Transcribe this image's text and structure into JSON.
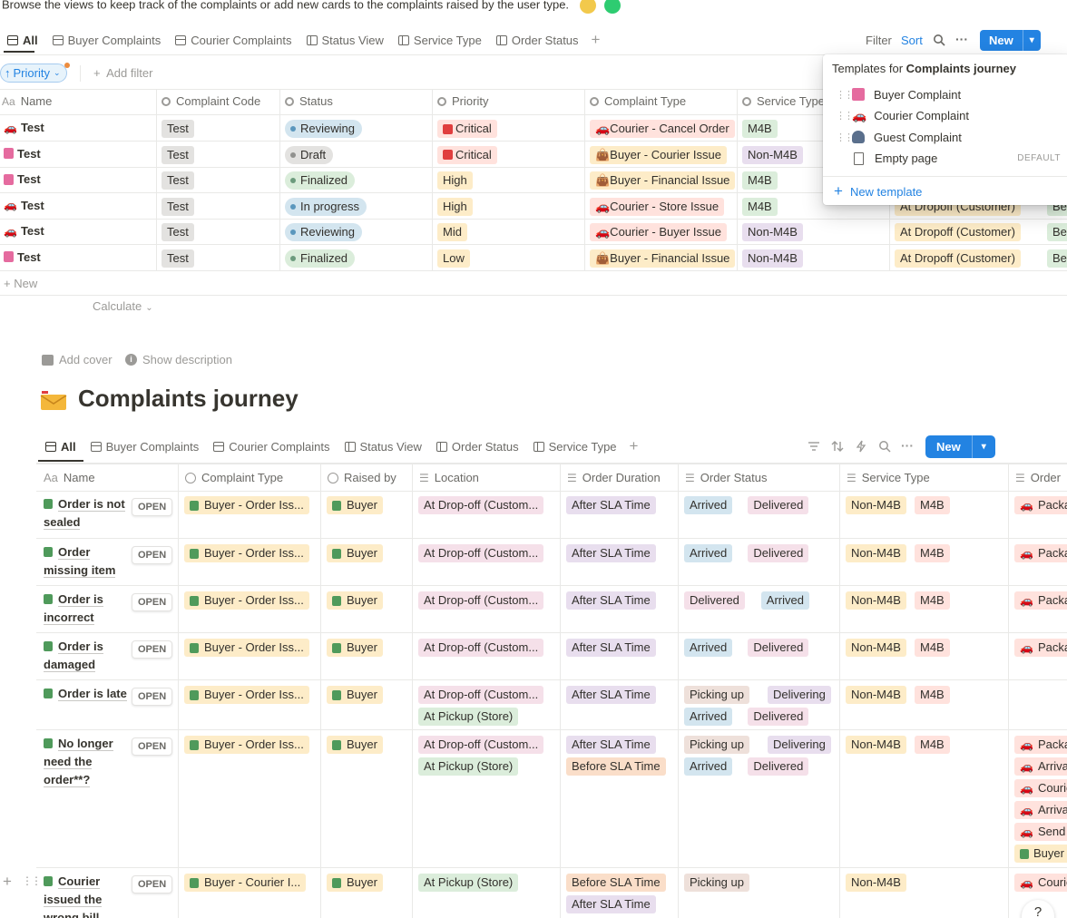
{
  "intro": {
    "text": "Browse the views to keep track of the complaints or add new cards to the complaints raised by the user type."
  },
  "top_tabs": [
    {
      "label": "All",
      "icon": "table-icon"
    },
    {
      "label": "Buyer Complaints",
      "icon": "table-icon"
    },
    {
      "label": "Courier Complaints",
      "icon": "table-icon"
    },
    {
      "label": "Status View",
      "icon": "board-icon"
    },
    {
      "label": "Service Type",
      "icon": "board-icon"
    },
    {
      "label": "Order Status",
      "icon": "board-icon"
    }
  ],
  "top_toolbar": {
    "filter": "Filter",
    "sort": "Sort",
    "new": "New"
  },
  "filter_bar": {
    "priority": "Priority",
    "add_filter": "Add filter"
  },
  "top_table": {
    "headers": [
      "Name",
      "Complaint Code",
      "Status",
      "Priority",
      "Complaint Type",
      "Service Type"
    ],
    "rows": [
      {
        "icon": "car",
        "name": "Test",
        "code": "Test",
        "status": "Reviewing",
        "status_color": "blue",
        "priority": "Critical",
        "priority_color": "red",
        "ptype_icon": "red",
        "ctype": "🚗Courier - Cancel Order",
        "ctype_color": "red",
        "service": "M4B",
        "service_color": "green",
        "col7": "",
        "col8": ""
      },
      {
        "icon": "bag",
        "name": "Test",
        "code": "Test",
        "status": "Draft",
        "status_color": "gray",
        "priority": "Critical",
        "priority_color": "red",
        "ptype_icon": "red",
        "ctype": "👜Buyer - Courier Issue",
        "ctype_color": "yellow",
        "service": "Non-M4B",
        "service_color": "purple",
        "col7": "",
        "col8": ""
      },
      {
        "icon": "bag",
        "name": "Test",
        "code": "Test",
        "status": "Finalized",
        "status_color": "green",
        "priority": "High",
        "priority_color": "yellow",
        "ptype_icon": "",
        "ctype": "👜Buyer - Financial Issue",
        "ctype_color": "yellow",
        "service": "M4B",
        "service_color": "green",
        "col7": "",
        "col8": ""
      },
      {
        "icon": "car",
        "name": "Test",
        "code": "Test",
        "status": "In progress",
        "status_color": "blue",
        "priority": "High",
        "priority_color": "yellow",
        "ptype_icon": "",
        "ctype": "🚗Courier - Store Issue",
        "ctype_color": "red",
        "service": "M4B",
        "service_color": "green",
        "col7": "At Dropoff (Customer)",
        "col8": "Bef"
      },
      {
        "icon": "car",
        "name": "Test",
        "code": "Test",
        "status": "Reviewing",
        "status_color": "blue",
        "priority": "Mid",
        "priority_color": "yellow",
        "ptype_icon": "",
        "ctype": "🚗Courier - Buyer Issue",
        "ctype_color": "red",
        "service": "Non-M4B",
        "service_color": "purple",
        "col7": "At Dropoff (Customer)",
        "col8": "Bef"
      },
      {
        "icon": "bag",
        "name": "Test",
        "code": "Test",
        "status": "Finalized",
        "status_color": "green",
        "priority": "Low",
        "priority_color": "yellow",
        "ptype_icon": "",
        "ctype": "👜Buyer - Financial Issue",
        "ctype_color": "yellow",
        "service": "Non-M4B",
        "service_color": "purple",
        "col7": "At Dropoff (Customer)",
        "col8": "Bef"
      }
    ],
    "new_row": "New",
    "calculate": "Calculate"
  },
  "templates_popup": {
    "title_prefix": "Templates for ",
    "title_bold": "Complaints journey",
    "items": [
      {
        "label": "Buyer Complaint",
        "icon": "bag"
      },
      {
        "label": "Courier Complaint",
        "icon": "car"
      },
      {
        "label": "Guest Complaint",
        "icon": "person"
      },
      {
        "label": "Empty page",
        "icon": "page",
        "badge": "DEFAULT"
      }
    ],
    "new_template": "New template"
  },
  "page": {
    "add_cover": "Add cover",
    "show_description": "Show description",
    "title": "Complaints journey"
  },
  "bottom_tabs": [
    {
      "label": "All",
      "icon": "table-icon"
    },
    {
      "label": "Buyer Complaints",
      "icon": "table-icon"
    },
    {
      "label": "Courier Complaints",
      "icon": "table-icon"
    },
    {
      "label": "Status View",
      "icon": "board-icon"
    },
    {
      "label": "Order Status",
      "icon": "board-icon"
    },
    {
      "label": "Service Type",
      "icon": "board-icon"
    }
  ],
  "bottom_toolbar": {
    "new": "New"
  },
  "bottom_table": {
    "headers": [
      "Name",
      "Complaint Type",
      "Raised by",
      "Location",
      "Order Duration",
      "Order Status",
      "Service Type",
      "Order"
    ],
    "open_label": "OPEN",
    "rows": [
      {
        "name": [
          "Order is not",
          "sealed"
        ],
        "ctype": "Buyer - Order Iss...",
        "raised": "Buyer",
        "location": [
          "At Drop-off (Custom..."
        ],
        "duration": [
          {
            "t": "After SLA Time",
            "c": "purple"
          }
        ],
        "status": [
          [
            {
              "t": "Arrived",
              "c": "blue"
            },
            {
              "t": "Delivered",
              "c": "pink"
            }
          ]
        ],
        "service": [
          "Non-M4B",
          "M4B"
        ],
        "order": [
          "Packa"
        ]
      },
      {
        "name": [
          "Order",
          "missing item"
        ],
        "ctype": "Buyer - Order Iss...",
        "raised": "Buyer",
        "location": [
          "At Drop-off (Custom..."
        ],
        "duration": [
          {
            "t": "After SLA Time",
            "c": "purple"
          }
        ],
        "status": [
          [
            {
              "t": "Arrived",
              "c": "blue"
            },
            {
              "t": "Delivered",
              "c": "pink"
            }
          ]
        ],
        "service": [
          "Non-M4B",
          "M4B"
        ],
        "order": [
          "Packa"
        ]
      },
      {
        "name": [
          "Order is",
          "incorrect"
        ],
        "ctype": "Buyer - Order Iss...",
        "raised": "Buyer",
        "location": [
          "At Drop-off (Custom..."
        ],
        "duration": [
          {
            "t": "After SLA Time",
            "c": "purple"
          }
        ],
        "status": [
          [
            {
              "t": "Delivered",
              "c": "pink"
            },
            {
              "t": "Arrived",
              "c": "blue"
            }
          ]
        ],
        "service": [
          "Non-M4B",
          "M4B"
        ],
        "order": [
          "Packa"
        ]
      },
      {
        "name": [
          "Order is",
          "damaged"
        ],
        "ctype": "Buyer - Order Iss...",
        "raised": "Buyer",
        "location": [
          "At Drop-off (Custom..."
        ],
        "duration": [
          {
            "t": "After SLA Time",
            "c": "purple"
          }
        ],
        "status": [
          [
            {
              "t": "Arrived",
              "c": "blue"
            },
            {
              "t": "Delivered",
              "c": "pink"
            }
          ]
        ],
        "service": [
          "Non-M4B",
          "M4B"
        ],
        "order": [
          "Packa"
        ]
      },
      {
        "name": [
          "Order is late"
        ],
        "ctype": "Buyer - Order Iss...",
        "raised": "Buyer",
        "location": [
          "At Drop-off (Custom...",
          "At Pickup (Store)"
        ],
        "duration": [
          {
            "t": "After SLA Time",
            "c": "purple"
          }
        ],
        "status": [
          [
            {
              "t": "Picking up",
              "c": "brown"
            },
            {
              "t": "Delivering",
              "c": "purple"
            }
          ],
          [
            {
              "t": "Arrived",
              "c": "blue"
            },
            {
              "t": "Delivered",
              "c": "pink"
            }
          ]
        ],
        "service": [
          "Non-M4B",
          "M4B"
        ],
        "order": []
      },
      {
        "name": [
          "No longer",
          "need the",
          "order**?"
        ],
        "ctype": "Buyer - Order Iss...",
        "raised": "Buyer",
        "location": [
          "At Drop-off (Custom...",
          "At Pickup (Store)"
        ],
        "duration": [
          {
            "t": "After SLA Time",
            "c": "purple"
          },
          {
            "t": "Before SLA Time",
            "c": "orange"
          }
        ],
        "status": [
          [
            {
              "t": "Picking up",
              "c": "brown"
            },
            {
              "t": "Delivering",
              "c": "purple"
            }
          ],
          [
            {
              "t": "Arrived",
              "c": "blue"
            },
            {
              "t": "Delivered",
              "c": "pink"
            }
          ]
        ],
        "service": [
          "Non-M4B",
          "M4B"
        ],
        "order": [
          "Packa",
          "Arriva",
          "Courie",
          "Arriva",
          "Send",
          "Buyer"
        ]
      },
      {
        "name": [
          "Courier",
          "issued the",
          "wrong bill"
        ],
        "ctype": "Buyer - Courier I...",
        "raised": "Buyer",
        "location": [
          "At Pickup (Store)"
        ],
        "duration": [
          {
            "t": "Before SLA Time",
            "c": "orange"
          },
          {
            "t": "After SLA Time",
            "c": "purple"
          }
        ],
        "status": [
          [
            {
              "t": "Picking up",
              "c": "brown"
            }
          ]
        ],
        "service": [
          "Non-M4B"
        ],
        "order": [
          "Courie"
        ]
      }
    ]
  },
  "colors": {
    "accent": "#2383e2",
    "text": "#37352f",
    "muted": "#6b6a66"
  }
}
